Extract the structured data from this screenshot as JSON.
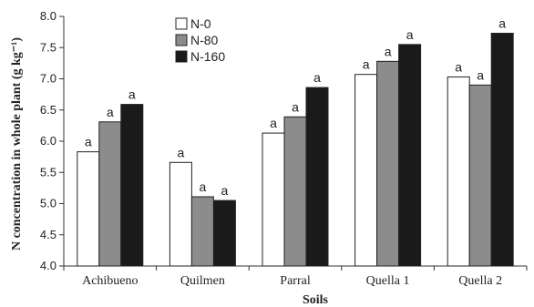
{
  "chart_data": {
    "type": "bar",
    "xlabel": "Soils",
    "ylabel": "N concentration in whole plant (g kg⁻¹)",
    "ylim": [
      4.0,
      8.0
    ],
    "yticks": [
      "4.0",
      "4.5",
      "5.0",
      "5.5",
      "6.0",
      "6.5",
      "7.0",
      "7.5",
      "8.0"
    ],
    "categories": [
      "Achibueno",
      "Quilmen",
      "Parral",
      "Quella 1",
      "Quella 2"
    ],
    "series": [
      {
        "name": "N-0",
        "color": "#ffffff",
        "values": [
          5.83,
          5.66,
          6.13,
          7.07,
          7.03
        ],
        "labels": [
          "a",
          "a",
          "a",
          "a",
          "a"
        ]
      },
      {
        "name": "N-80",
        "color": "#8c8c8c",
        "values": [
          6.31,
          5.11,
          6.39,
          7.28,
          6.9
        ],
        "labels": [
          "a",
          "a",
          "a",
          "a",
          "a"
        ]
      },
      {
        "name": "N-160",
        "color": "#1a1a1a",
        "values": [
          6.59,
          5.05,
          6.86,
          7.55,
          7.73
        ],
        "labels": [
          "a",
          "a",
          "a",
          "a",
          "a"
        ]
      }
    ],
    "legend_position": "top-left",
    "grid": false
  }
}
